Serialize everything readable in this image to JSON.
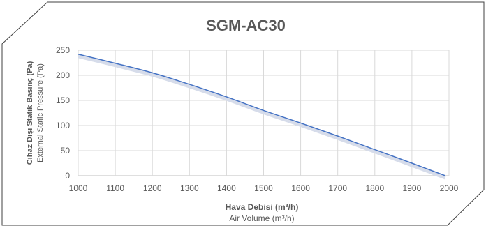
{
  "chart_data": {
    "type": "line",
    "title": "SGM-AC30",
    "xlabel": "Hava Debisi (m³/h)",
    "xlabel_secondary": "Air Volume (m³/h)",
    "ylabel": "Cihaz Dışı Statik Basınç (Pa)",
    "ylabel_secondary": "External Static Pressure (Pa)",
    "xlim": [
      1000,
      2000
    ],
    "ylim": [
      0,
      250
    ],
    "x_ticks": [
      "1000",
      "1100",
      "1200",
      "1300",
      "1400",
      "1500",
      "1600",
      "1700",
      "1800",
      "1900",
      "2000"
    ],
    "y_ticks": [
      "0",
      "50",
      "100",
      "150",
      "200",
      "250"
    ],
    "grid": true,
    "line_color": "#4472c4",
    "series": [
      {
        "x": [
          1000,
          1100,
          1200,
          1300,
          1400,
          1500,
          1600,
          1700,
          1800,
          1900,
          1990
        ],
        "values": [
          242,
          224,
          205,
          182,
          157,
          130,
          105,
          79,
          52,
          25,
          0
        ]
      }
    ]
  }
}
